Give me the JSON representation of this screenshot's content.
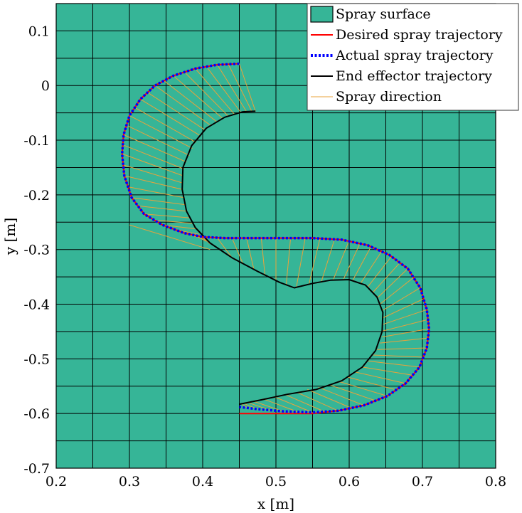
{
  "chart_data": {
    "type": "line",
    "title": "",
    "xlabel": "x [m]",
    "ylabel": "y [m]",
    "xlim": [
      0.2,
      0.8
    ],
    "ylim": [
      -0.7,
      0.15
    ],
    "x_ticks": [
      0.2,
      0.3,
      0.4,
      0.5,
      0.6,
      0.7,
      0.8
    ],
    "x_tick_labels": [
      "0.2",
      "0.3",
      "0.4",
      "0.5",
      "0.6",
      "0.7",
      "0.8"
    ],
    "y_ticks": [
      0.1,
      0,
      -0.1,
      -0.2,
      -0.3,
      -0.4,
      -0.5,
      -0.6,
      -0.7
    ],
    "y_tick_labels": [
      "0.1",
      "0",
      "-0.1",
      "-0.2",
      "-0.3",
      "-0.4",
      "-0.5",
      "-0.6",
      "-0.7"
    ],
    "grid": true,
    "grid_step_x": 0.05,
    "grid_step_y": 0.05,
    "legend_position": "top-right",
    "surface": {
      "name": "Spray surface",
      "color": "#36b597"
    },
    "series": [
      {
        "name": "Desired spray trajectory",
        "color": "#ff0000",
        "style": "solid",
        "points": [
          [
            0.45,
            0.04
          ],
          [
            0.42,
            0.038
          ],
          [
            0.39,
            0.031
          ],
          [
            0.36,
            0.018
          ],
          [
            0.335,
            0.0
          ],
          [
            0.315,
            -0.025
          ],
          [
            0.3,
            -0.055
          ],
          [
            0.292,
            -0.09
          ],
          [
            0.29,
            -0.125
          ],
          [
            0.293,
            -0.165
          ],
          [
            0.303,
            -0.205
          ],
          [
            0.32,
            -0.235
          ],
          [
            0.345,
            -0.255
          ],
          [
            0.375,
            -0.27
          ],
          [
            0.4,
            -0.277
          ],
          [
            0.43,
            -0.279
          ],
          [
            0.47,
            -0.279
          ],
          [
            0.51,
            -0.279
          ],
          [
            0.55,
            -0.279
          ],
          [
            0.59,
            -0.282
          ],
          [
            0.625,
            -0.292
          ],
          [
            0.655,
            -0.31
          ],
          [
            0.68,
            -0.335
          ],
          [
            0.697,
            -0.37
          ],
          [
            0.706,
            -0.41
          ],
          [
            0.709,
            -0.445
          ],
          [
            0.706,
            -0.48
          ],
          [
            0.696,
            -0.515
          ],
          [
            0.677,
            -0.545
          ],
          [
            0.652,
            -0.568
          ],
          [
            0.62,
            -0.585
          ],
          [
            0.585,
            -0.595
          ],
          [
            0.55,
            -0.6
          ],
          [
            0.5,
            -0.6
          ],
          [
            0.45,
            -0.6
          ]
        ]
      },
      {
        "name": "Actual spray trajectory",
        "color": "#0000ff",
        "style": "dotted",
        "points": [
          [
            0.45,
            0.04
          ],
          [
            0.42,
            0.038
          ],
          [
            0.39,
            0.031
          ],
          [
            0.36,
            0.018
          ],
          [
            0.335,
            0.0
          ],
          [
            0.315,
            -0.025
          ],
          [
            0.3,
            -0.055
          ],
          [
            0.292,
            -0.09
          ],
          [
            0.29,
            -0.125
          ],
          [
            0.293,
            -0.165
          ],
          [
            0.303,
            -0.205
          ],
          [
            0.32,
            -0.235
          ],
          [
            0.345,
            -0.255
          ],
          [
            0.375,
            -0.27
          ],
          [
            0.4,
            -0.277
          ],
          [
            0.43,
            -0.279
          ],
          [
            0.47,
            -0.279
          ],
          [
            0.51,
            -0.279
          ],
          [
            0.55,
            -0.279
          ],
          [
            0.59,
            -0.282
          ],
          [
            0.625,
            -0.292
          ],
          [
            0.655,
            -0.31
          ],
          [
            0.68,
            -0.335
          ],
          [
            0.697,
            -0.37
          ],
          [
            0.706,
            -0.41
          ],
          [
            0.709,
            -0.445
          ],
          [
            0.706,
            -0.48
          ],
          [
            0.696,
            -0.515
          ],
          [
            0.677,
            -0.545
          ],
          [
            0.652,
            -0.568
          ],
          [
            0.62,
            -0.585
          ],
          [
            0.585,
            -0.595
          ],
          [
            0.55,
            -0.598
          ],
          [
            0.51,
            -0.596
          ],
          [
            0.475,
            -0.592
          ],
          [
            0.45,
            -0.588
          ]
        ]
      },
      {
        "name": "End effector trajectory",
        "color": "#000000",
        "style": "solid",
        "points": [
          [
            0.472,
            -0.047
          ],
          [
            0.455,
            -0.048
          ],
          [
            0.43,
            -0.058
          ],
          [
            0.405,
            -0.078
          ],
          [
            0.385,
            -0.11
          ],
          [
            0.373,
            -0.15
          ],
          [
            0.372,
            -0.19
          ],
          [
            0.378,
            -0.23
          ],
          [
            0.39,
            -0.26
          ],
          [
            0.41,
            -0.288
          ],
          [
            0.44,
            -0.315
          ],
          [
            0.475,
            -0.34
          ],
          [
            0.505,
            -0.36
          ],
          [
            0.525,
            -0.37
          ],
          [
            0.55,
            -0.362
          ],
          [
            0.575,
            -0.356
          ],
          [
            0.6,
            -0.355
          ],
          [
            0.622,
            -0.365
          ],
          [
            0.638,
            -0.387
          ],
          [
            0.646,
            -0.415
          ],
          [
            0.645,
            -0.45
          ],
          [
            0.636,
            -0.485
          ],
          [
            0.618,
            -0.515
          ],
          [
            0.59,
            -0.54
          ],
          [
            0.555,
            -0.556
          ],
          [
            0.515,
            -0.565
          ],
          [
            0.48,
            -0.575
          ],
          [
            0.45,
            -0.583
          ]
        ]
      }
    ],
    "spray_direction": {
      "name": "Spray direction",
      "color": "#e8a33a",
      "segments": [
        [
          [
            0.45,
            0.04
          ],
          [
            0.472,
            -0.047
          ]
        ],
        [
          [
            0.435,
            0.039
          ],
          [
            0.467,
            -0.047
          ]
        ],
        [
          [
            0.42,
            0.038
          ],
          [
            0.46,
            -0.048
          ]
        ],
        [
          [
            0.405,
            0.035
          ],
          [
            0.452,
            -0.049
          ]
        ],
        [
          [
            0.39,
            0.031
          ],
          [
            0.443,
            -0.052
          ]
        ],
        [
          [
            0.375,
            0.025
          ],
          [
            0.435,
            -0.056
          ]
        ],
        [
          [
            0.36,
            0.018
          ],
          [
            0.427,
            -0.06
          ]
        ],
        [
          [
            0.347,
            0.009
          ],
          [
            0.419,
            -0.066
          ]
        ],
        [
          [
            0.335,
            0.0
          ],
          [
            0.411,
            -0.073
          ]
        ],
        [
          [
            0.324,
            -0.012
          ],
          [
            0.404,
            -0.082
          ]
        ],
        [
          [
            0.315,
            -0.025
          ],
          [
            0.397,
            -0.092
          ]
        ],
        [
          [
            0.307,
            -0.04
          ],
          [
            0.391,
            -0.104
          ]
        ],
        [
          [
            0.3,
            -0.055
          ],
          [
            0.386,
            -0.115
          ]
        ],
        [
          [
            0.295,
            -0.072
          ],
          [
            0.382,
            -0.128
          ]
        ],
        [
          [
            0.292,
            -0.09
          ],
          [
            0.378,
            -0.14
          ]
        ],
        [
          [
            0.29,
            -0.108
          ],
          [
            0.375,
            -0.153
          ]
        ],
        [
          [
            0.29,
            -0.125
          ],
          [
            0.373,
            -0.165
          ]
        ],
        [
          [
            0.291,
            -0.145
          ],
          [
            0.372,
            -0.178
          ]
        ],
        [
          [
            0.293,
            -0.165
          ],
          [
            0.372,
            -0.19
          ]
        ],
        [
          [
            0.297,
            -0.185
          ],
          [
            0.374,
            -0.205
          ]
        ],
        [
          [
            0.303,
            -0.205
          ],
          [
            0.376,
            -0.218
          ]
        ],
        [
          [
            0.311,
            -0.22
          ],
          [
            0.378,
            -0.23
          ]
        ],
        [
          [
            0.32,
            -0.235
          ],
          [
            0.382,
            -0.242
          ]
        ],
        [
          [
            0.332,
            -0.246
          ],
          [
            0.386,
            -0.252
          ]
        ],
        [
          [
            0.345,
            -0.255
          ],
          [
            0.39,
            -0.262
          ]
        ],
        [
          [
            0.36,
            -0.263
          ],
          [
            0.395,
            -0.272
          ]
        ],
        [
          [
            0.375,
            -0.27
          ],
          [
            0.4,
            -0.28
          ]
        ],
        [
          [
            0.389,
            -0.274
          ],
          [
            0.405,
            -0.285
          ]
        ],
        [
          [
            0.4,
            -0.277
          ],
          [
            0.41,
            -0.29
          ]
        ],
        [
          [
            0.3,
            -0.255
          ],
          [
            0.41,
            -0.3
          ]
        ],
        [
          [
            0.4,
            -0.279
          ],
          [
            0.425,
            -0.302
          ]
        ],
        [
          [
            0.42,
            -0.279
          ],
          [
            0.44,
            -0.315
          ]
        ],
        [
          [
            0.44,
            -0.279
          ],
          [
            0.455,
            -0.326
          ]
        ],
        [
          [
            0.46,
            -0.279
          ],
          [
            0.47,
            -0.337
          ]
        ],
        [
          [
            0.48,
            -0.279
          ],
          [
            0.485,
            -0.347
          ]
        ],
        [
          [
            0.5,
            -0.279
          ],
          [
            0.5,
            -0.357
          ]
        ],
        [
          [
            0.52,
            -0.279
          ],
          [
            0.514,
            -0.365
          ]
        ],
        [
          [
            0.54,
            -0.279
          ],
          [
            0.528,
            -0.368
          ]
        ],
        [
          [
            0.56,
            -0.28
          ],
          [
            0.545,
            -0.364
          ]
        ],
        [
          [
            0.58,
            -0.281
          ],
          [
            0.562,
            -0.359
          ]
        ],
        [
          [
            0.6,
            -0.283
          ],
          [
            0.578,
            -0.356
          ]
        ],
        [
          [
            0.615,
            -0.288
          ],
          [
            0.592,
            -0.355
          ]
        ],
        [
          [
            0.63,
            -0.294
          ],
          [
            0.605,
            -0.356
          ]
        ],
        [
          [
            0.645,
            -0.302
          ],
          [
            0.616,
            -0.361
          ]
        ],
        [
          [
            0.658,
            -0.312
          ],
          [
            0.625,
            -0.369
          ]
        ],
        [
          [
            0.67,
            -0.323
          ],
          [
            0.632,
            -0.379
          ]
        ],
        [
          [
            0.68,
            -0.335
          ],
          [
            0.638,
            -0.389
          ]
        ],
        [
          [
            0.689,
            -0.35
          ],
          [
            0.642,
            -0.4
          ]
        ],
        [
          [
            0.697,
            -0.37
          ],
          [
            0.645,
            -0.412
          ]
        ],
        [
          [
            0.702,
            -0.39
          ],
          [
            0.646,
            -0.425
          ]
        ],
        [
          [
            0.706,
            -0.41
          ],
          [
            0.646,
            -0.437
          ]
        ],
        [
          [
            0.708,
            -0.428
          ],
          [
            0.646,
            -0.449
          ]
        ],
        [
          [
            0.709,
            -0.445
          ],
          [
            0.645,
            -0.46
          ]
        ],
        [
          [
            0.708,
            -0.462
          ],
          [
            0.642,
            -0.471
          ]
        ],
        [
          [
            0.706,
            -0.48
          ],
          [
            0.638,
            -0.483
          ]
        ],
        [
          [
            0.702,
            -0.497
          ],
          [
            0.633,
            -0.493
          ]
        ],
        [
          [
            0.696,
            -0.515
          ],
          [
            0.626,
            -0.504
          ]
        ],
        [
          [
            0.687,
            -0.53
          ],
          [
            0.618,
            -0.515
          ]
        ],
        [
          [
            0.677,
            -0.545
          ],
          [
            0.608,
            -0.524
          ]
        ],
        [
          [
            0.665,
            -0.557
          ],
          [
            0.597,
            -0.533
          ]
        ],
        [
          [
            0.652,
            -0.568
          ],
          [
            0.585,
            -0.541
          ]
        ],
        [
          [
            0.637,
            -0.577
          ],
          [
            0.572,
            -0.547
          ]
        ],
        [
          [
            0.62,
            -0.585
          ],
          [
            0.558,
            -0.552
          ]
        ],
        [
          [
            0.603,
            -0.59
          ],
          [
            0.543,
            -0.556
          ]
        ],
        [
          [
            0.585,
            -0.595
          ],
          [
            0.528,
            -0.561
          ]
        ],
        [
          [
            0.567,
            -0.597
          ],
          [
            0.512,
            -0.565
          ]
        ],
        [
          [
            0.55,
            -0.598
          ],
          [
            0.497,
            -0.569
          ]
        ],
        [
          [
            0.53,
            -0.597
          ],
          [
            0.482,
            -0.573
          ]
        ],
        [
          [
            0.51,
            -0.596
          ],
          [
            0.468,
            -0.577
          ]
        ],
        [
          [
            0.492,
            -0.594
          ],
          [
            0.46,
            -0.579
          ]
        ],
        [
          [
            0.475,
            -0.592
          ],
          [
            0.455,
            -0.581
          ]
        ],
        [
          [
            0.462,
            -0.59
          ],
          [
            0.452,
            -0.582
          ]
        ]
      ]
    }
  }
}
